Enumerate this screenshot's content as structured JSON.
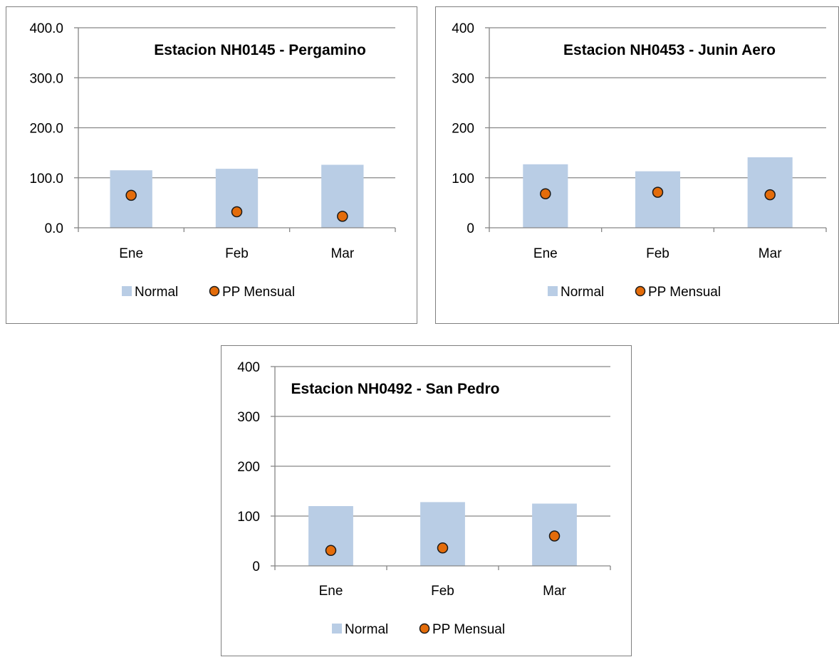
{
  "colors": {
    "normal_bar": "#b9cde5",
    "pp_point": "#e46c0a",
    "point_stroke": "#1a1a1a",
    "grid": "#868686",
    "axis": "#868686",
    "border": "#7f7f7f"
  },
  "chart_data": [
    {
      "type": "bar",
      "title": "Estacion NH0145 - Pergamino",
      "categories": [
        "Ene",
        "Feb",
        "Mar"
      ],
      "yticks": [
        "0.0",
        "100.0",
        "200.0",
        "300.0",
        "400.0"
      ],
      "ylim": [
        0,
        400
      ],
      "grid": true,
      "legend_position": "bottom",
      "series": [
        {
          "name": "Normal",
          "kind": "bar",
          "values": [
            115,
            118,
            126
          ]
        },
        {
          "name": "PP Mensual",
          "kind": "point",
          "values": [
            65,
            32,
            23
          ]
        }
      ]
    },
    {
      "type": "bar",
      "title": "Estacion NH0453 - Junin Aero",
      "categories": [
        "Ene",
        "Feb",
        "Mar"
      ],
      "yticks": [
        "0",
        "100",
        "200",
        "300",
        "400"
      ],
      "ylim": [
        0,
        400
      ],
      "grid": true,
      "legend_position": "bottom",
      "series": [
        {
          "name": "Normal",
          "kind": "bar",
          "values": [
            127,
            113,
            141
          ]
        },
        {
          "name": "PP Mensual",
          "kind": "point",
          "values": [
            68,
            71,
            66
          ]
        }
      ]
    },
    {
      "type": "bar",
      "title": "Estacion NH0492 - San Pedro",
      "categories": [
        "Ene",
        "Feb",
        "Mar"
      ],
      "yticks": [
        "0",
        "100",
        "200",
        "300",
        "400"
      ],
      "ylim": [
        0,
        400
      ],
      "grid": true,
      "legend_position": "bottom",
      "series": [
        {
          "name": "Normal",
          "kind": "bar",
          "values": [
            120,
            128,
            125
          ]
        },
        {
          "name": "PP Mensual",
          "kind": "point",
          "values": [
            31,
            36,
            60
          ]
        }
      ]
    }
  ]
}
